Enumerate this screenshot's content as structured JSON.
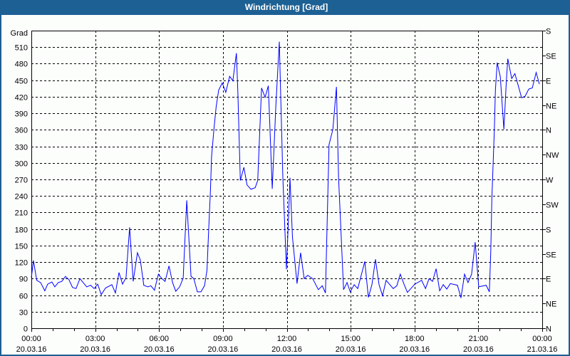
{
  "window": {
    "title": "Windrichtung [Grad]"
  },
  "colors": {
    "titlebar": "#1c6094",
    "line": "#0000ff",
    "background": "#fcfefc",
    "grid": "#000000"
  },
  "chart_data": {
    "type": "line",
    "title": "Windrichtung [Grad]",
    "ylabel": "Grad",
    "ylim": [
      0,
      540
    ],
    "yticks": [
      0,
      30,
      60,
      90,
      120,
      150,
      180,
      210,
      240,
      270,
      300,
      330,
      360,
      390,
      420,
      450,
      480,
      510
    ],
    "right_axis": {
      "values": [
        0,
        45,
        90,
        135,
        180,
        225,
        270,
        315,
        360,
        405,
        450,
        495,
        540
      ],
      "labels": [
        "N",
        "NE",
        "E",
        "SE",
        "S",
        "SW",
        "W",
        "NW",
        "N",
        "NE",
        "E",
        "SE",
        "S"
      ]
    },
    "xlim": [
      "00:00",
      "24:00"
    ],
    "xticks": [
      {
        "time": "00:00",
        "date": "20.03.16"
      },
      {
        "time": "03:00",
        "date": "20.03.16"
      },
      {
        "time": "06:00",
        "date": "20.03.16"
      },
      {
        "time": "09:00",
        "date": "20.03.16"
      },
      {
        "time": "12:00",
        "date": "20.03.16"
      },
      {
        "time": "15:00",
        "date": "20.03.16"
      },
      {
        "time": "18:00",
        "date": "20.03.16"
      },
      {
        "time": "21:00",
        "date": "20.03.16"
      },
      {
        "time": "00:00",
        "date": "21.03.16"
      }
    ],
    "grid": true,
    "series": [
      {
        "x": [
          "00:00",
          "00:06",
          "00:15",
          "00:26",
          "00:38",
          "00:46",
          "00:58",
          "01:06",
          "01:16",
          "01:26",
          "01:36",
          "01:46",
          "01:56",
          "02:06",
          "02:17",
          "02:26",
          "02:36",
          "02:47",
          "02:57",
          "03:07",
          "03:17",
          "03:29",
          "03:47",
          "03:57",
          "04:07",
          "04:17",
          "04:27",
          "04:37",
          "04:47",
          "04:59",
          "05:07",
          "05:17",
          "05:28",
          "05:37",
          "05:47",
          "05:58",
          "06:08",
          "06:17",
          "06:28",
          "06:38",
          "06:47",
          "06:58",
          "07:08",
          "07:18",
          "07:30",
          "07:38",
          "07:48",
          "07:58",
          "08:08",
          "08:15",
          "08:20",
          "08:25",
          "08:28",
          "08:35",
          "08:41",
          "08:48",
          "08:58",
          "09:08",
          "09:19",
          "09:28",
          "09:38",
          "09:42",
          "09:49",
          "09:59",
          "10:08",
          "10:19",
          "10:31",
          "10:38",
          "10:49",
          "10:59",
          "11:08",
          "11:19",
          "11:29",
          "11:39",
          "11:49",
          "11:59",
          "12:04",
          "12:09",
          "12:16",
          "12:29",
          "12:39",
          "12:49",
          "12:59",
          "13:13",
          "13:29",
          "13:40",
          "13:49",
          "13:59",
          "14:10",
          "14:20",
          "14:26",
          "14:40",
          "14:50",
          "14:59",
          "15:10",
          "15:20",
          "15:40",
          "15:50",
          "16:00",
          "16:10",
          "16:20",
          "16:30",
          "16:40",
          "17:00",
          "17:10",
          "17:20",
          "17:31",
          "17:40",
          "18:01",
          "18:20",
          "18:31",
          "18:41",
          "18:51",
          "19:01",
          "19:11",
          "19:21",
          "19:31",
          "19:41",
          "20:01",
          "20:11",
          "20:21",
          "20:31",
          "20:41",
          "20:51",
          "21:01",
          "21:22",
          "21:31",
          "21:35",
          "21:38",
          "21:45",
          "21:48",
          "21:53",
          "22:02",
          "22:12",
          "22:19",
          "22:23",
          "22:34",
          "22:43",
          "23:02",
          "23:12",
          "23:22",
          "23:32",
          "23:43",
          "23:52"
        ],
        "y": [
          92,
          123,
          87,
          83,
          68,
          80,
          84,
          75,
          83,
          85,
          94,
          88,
          74,
          72,
          90,
          83,
          75,
          78,
          72,
          80,
          61,
          73,
          79,
          64,
          101,
          80,
          92,
          183,
          85,
          137,
          124,
          78,
          75,
          77,
          69,
          98,
          90,
          85,
          113,
          83,
          67,
          75,
          91,
          232,
          94,
          90,
          66,
          66,
          77,
          105,
          182,
          251,
          311,
          363,
          402,
          432,
          445,
          428,
          457,
          449,
          499,
          430,
          268,
          292,
          260,
          252,
          255,
          268,
          436,
          419,
          440,
          253,
          402,
          520,
          273,
          107,
          186,
          273,
          165,
          81,
          137,
          90,
          96,
          90,
          70,
          77,
          64,
          333,
          361,
          438,
          273,
          70,
          83,
          66,
          79,
          72,
          121,
          56,
          79,
          125,
          79,
          59,
          87,
          72,
          77,
          98,
          79,
          65,
          80,
          87,
          72,
          90,
          85,
          108,
          68,
          79,
          71,
          81,
          78,
          55,
          98,
          83,
          98,
          156,
          75,
          78,
          66,
          139,
          234,
          359,
          432,
          482,
          456,
          361,
          449,
          489,
          453,
          462,
          418,
          421,
          434,
          436,
          464,
          443
        ]
      }
    ]
  }
}
